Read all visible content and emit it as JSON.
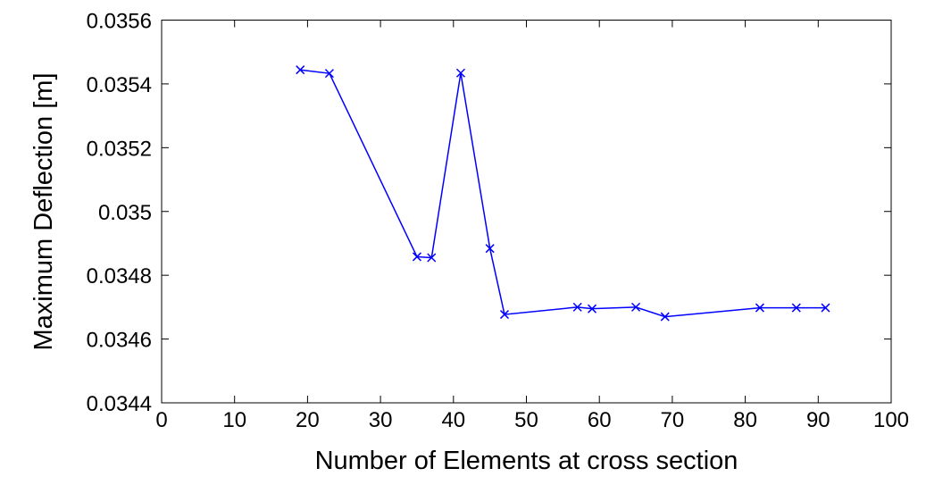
{
  "chart_data": {
    "type": "line",
    "title": "",
    "xlabel": "Number of Elements at cross section",
    "ylabel": "Maximum Deflection [m]",
    "xlim": [
      0,
      100
    ],
    "ylim": [
      0.0344,
      0.0356
    ],
    "xticks": [
      0,
      10,
      20,
      30,
      40,
      50,
      60,
      70,
      80,
      90,
      100
    ],
    "yticks": [
      0.0344,
      0.0346,
      0.0348,
      0.035,
      0.0352,
      0.0354,
      0.0356
    ],
    "xtick_labels": [
      "0",
      "10",
      "20",
      "30",
      "40",
      "50",
      "60",
      "70",
      "80",
      "90",
      "100"
    ],
    "ytick_labels": [
      "0.0344",
      "0.0346",
      "0.0348",
      "0.035",
      "0.0352",
      "0.0354",
      "0.0356"
    ],
    "grid": false,
    "series": [
      {
        "name": "Maximum Deflection",
        "color": "#0000ff",
        "marker": "x",
        "x": [
          19,
          23,
          35,
          37,
          41,
          45,
          47,
          57,
          59,
          65,
          69,
          82,
          87,
          91
        ],
        "y": [
          0.035444,
          0.035433,
          0.034858,
          0.034855,
          0.035434,
          0.034884,
          0.034677,
          0.0347,
          0.034695,
          0.0347,
          0.03467,
          0.034698,
          0.034698,
          0.034698
        ]
      }
    ]
  }
}
